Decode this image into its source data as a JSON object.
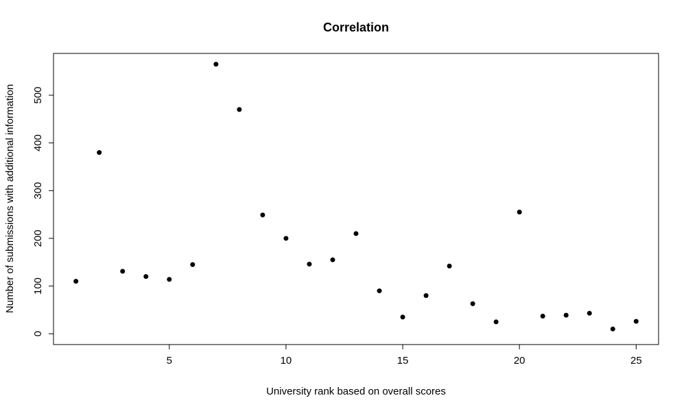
{
  "chart_data": {
    "type": "scatter",
    "title": "Correlation",
    "xlabel": "University rank based on overall scores",
    "ylabel": "Number of submissions with additional information",
    "xlim": [
      0.04,
      25.96
    ],
    "ylim": [
      -22.6,
      587.6
    ],
    "xticks": [
      5,
      10,
      15,
      20,
      25
    ],
    "yticks": [
      0,
      100,
      200,
      300,
      400,
      500
    ],
    "grid": false,
    "legend": "none",
    "point_color": "#000000",
    "x": [
      1,
      2,
      3,
      4,
      5,
      6,
      7,
      8,
      9,
      10,
      11,
      12,
      13,
      14,
      15,
      16,
      17,
      18,
      19,
      20,
      21,
      22,
      23,
      24,
      25
    ],
    "y": [
      110,
      380,
      131,
      120,
      114,
      145,
      565,
      470,
      249,
      200,
      146,
      155,
      210,
      90,
      35,
      80,
      142,
      63,
      25,
      255,
      37,
      39,
      43,
      10,
      26
    ]
  }
}
